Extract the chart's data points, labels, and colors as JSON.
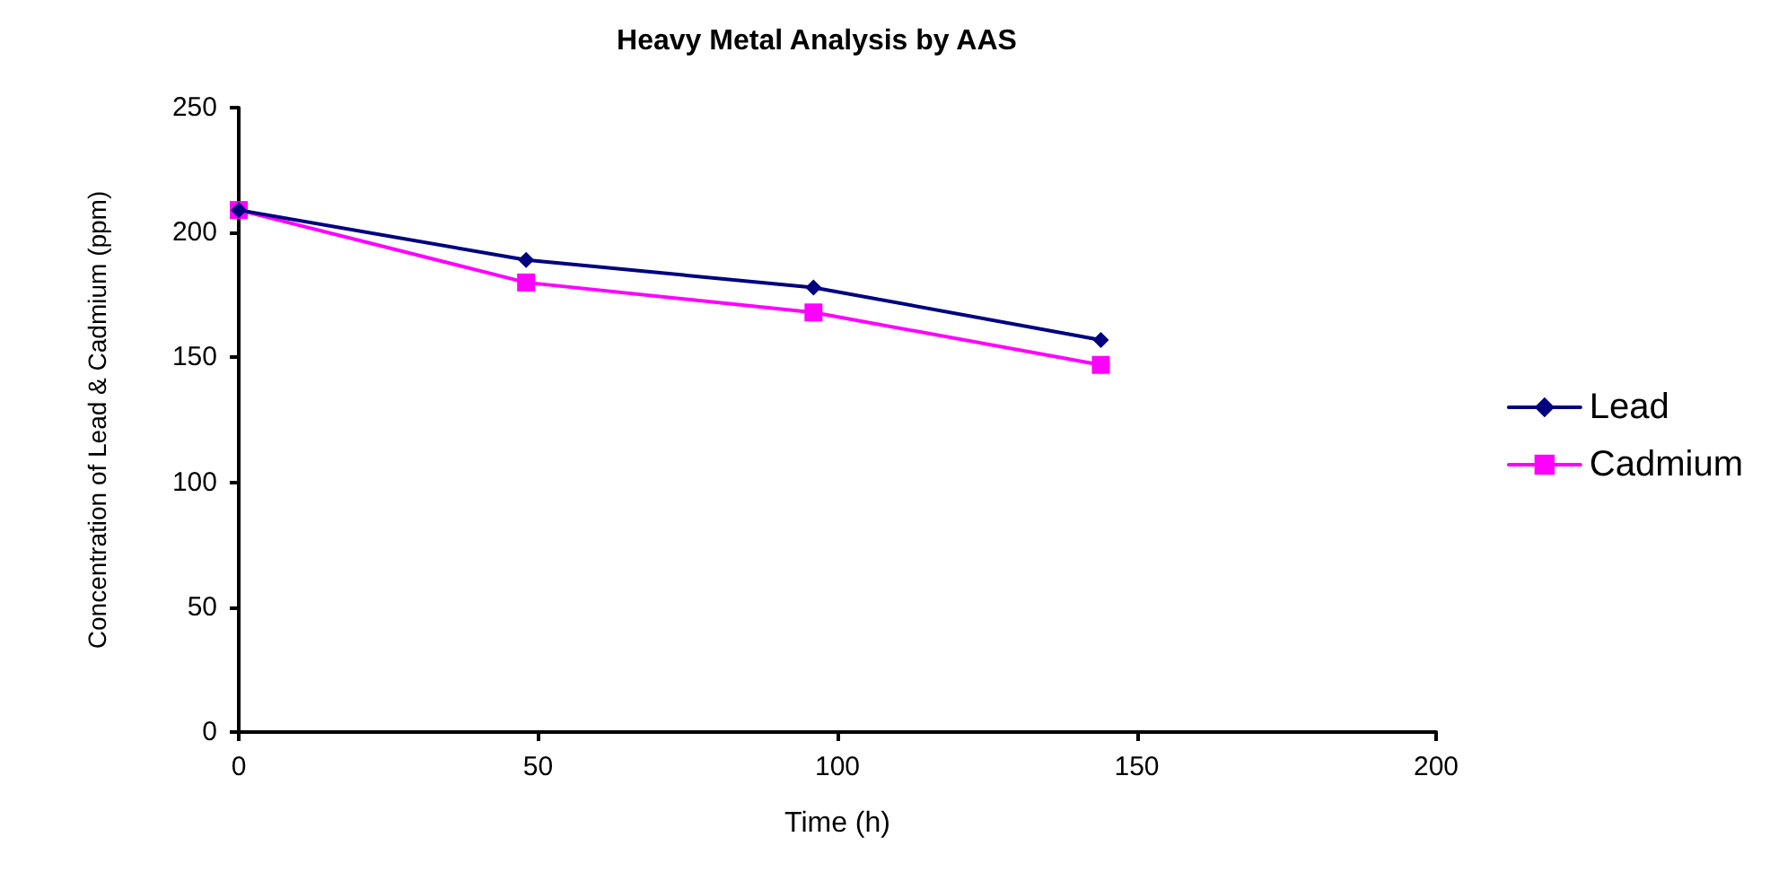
{
  "chart_data": {
    "type": "line",
    "title": "Heavy Metal Analysis by AAS",
    "xlabel": "Time (h)",
    "ylabel": "Concentration of Lead & Cadmium (ppm)",
    "x": [
      0,
      48,
      96,
      144
    ],
    "series": [
      {
        "name": "Lead",
        "color": "#000080",
        "marker": "diamond",
        "values": [
          209,
          189,
          178,
          157
        ]
      },
      {
        "name": "Cadmium",
        "color": "#ff00ff",
        "marker": "square",
        "values": [
          209,
          180,
          168,
          147
        ]
      }
    ],
    "xlim": [
      0,
      200
    ],
    "xticks": [
      0,
      50,
      100,
      150,
      200
    ],
    "ylim": [
      0,
      250
    ],
    "yticks": [
      0,
      50,
      100,
      150,
      200,
      250
    ],
    "grid": false,
    "legend": "right"
  }
}
